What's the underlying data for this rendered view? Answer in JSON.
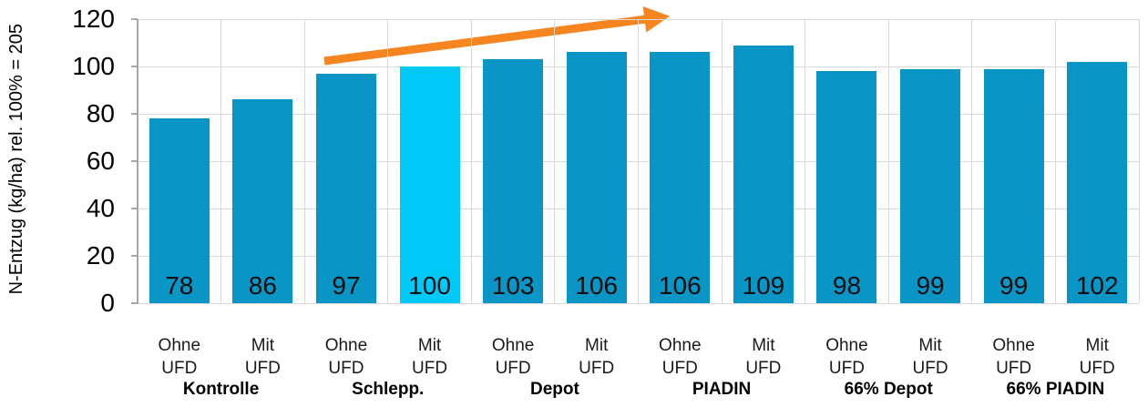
{
  "chart_data": {
    "type": "bar",
    "title": "",
    "ylabel": "N-Entzug (kg/ha) rel. 100% = 205",
    "xlabel": "",
    "ylim": [
      0,
      120
    ],
    "yticks": [
      0,
      20,
      40,
      60,
      80,
      100,
      120
    ],
    "grid": "on",
    "legend": "none",
    "groups": [
      {
        "label": "Kontrolle",
        "bars": [
          {
            "label": "Ohne UFD",
            "value": 78,
            "highlight": false
          },
          {
            "label": "Mit UFD",
            "value": 86,
            "highlight": false
          }
        ]
      },
      {
        "label": "Schlepp.",
        "bars": [
          {
            "label": "Ohne UFD",
            "value": 97,
            "highlight": false
          },
          {
            "label": "Mit UFD",
            "value": 100,
            "highlight": true
          }
        ]
      },
      {
        "label": "Depot",
        "bars": [
          {
            "label": "Ohne UFD",
            "value": 103,
            "highlight": false
          },
          {
            "label": "Mit UFD",
            "value": 106,
            "highlight": false
          }
        ]
      },
      {
        "label": "PIADIN",
        "bars": [
          {
            "label": "Ohne UFD",
            "value": 106,
            "highlight": false
          },
          {
            "label": "Mit UFD",
            "value": 109,
            "highlight": false
          }
        ]
      },
      {
        "label": "66% Depot",
        "bars": [
          {
            "label": "Ohne UFD",
            "value": 98,
            "highlight": false
          },
          {
            "label": "Mit UFD",
            "value": 99,
            "highlight": false
          }
        ]
      },
      {
        "label": "66% PIADIN",
        "bars": [
          {
            "label": "Ohne UFD",
            "value": 99,
            "highlight": false
          },
          {
            "label": "Mit UFD",
            "value": 102,
            "highlight": false
          }
        ]
      }
    ],
    "annotation": {
      "type": "trend-arrow",
      "description": "upward orange arrow from Schlepp. bars toward PIADIN bars",
      "tail_xy": [
        356,
        67
      ],
      "tip_xy": [
        733,
        18
      ]
    }
  },
  "colors": {
    "bar": "#0996c7",
    "bar_highlight": "#00c9f8",
    "arrow": "#f68520",
    "gridline": "#d9d9d9",
    "axis": "#a6a6a6",
    "text": "#000000"
  }
}
